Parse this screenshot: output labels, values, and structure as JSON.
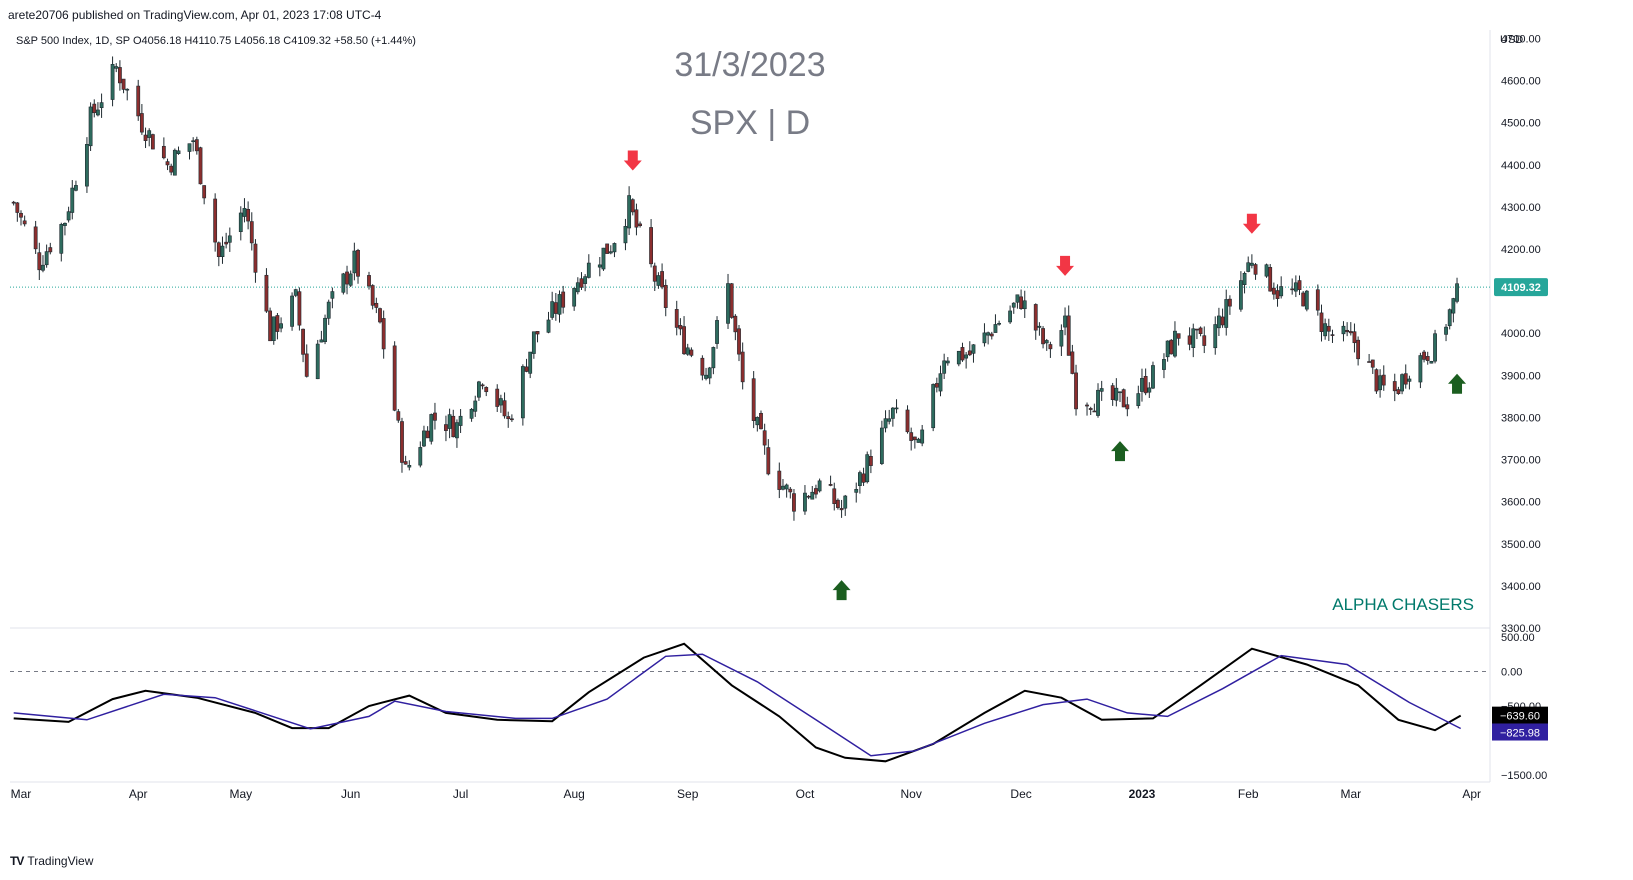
{
  "header": {
    "published": "arete20706 published on TradingView.com, Apr 01, 2023 17:08 UTC-4",
    "symbol_legend": "S&P 500 Index, 1D, SP  O4056.18  H4110.75  L4056.18  C4109.32  +58.50 (+1.44%)"
  },
  "watermark": {
    "date": "31/3/2023",
    "symbol": "SPX | D",
    "brand": "ALPHA CHASERS"
  },
  "footer": {
    "logo": "TV",
    "brand": "TradingView"
  },
  "colors": {
    "up": "#2e6b5e",
    "down": "#8b2e2e",
    "arrow_down": "#f23645",
    "arrow_up": "#1b5e20",
    "osc_fast": "#000000",
    "osc_slow": "#3020a0",
    "brand": "#00796b",
    "price_tag": "#26a69a"
  },
  "chart_data": [
    {
      "type": "candlestick",
      "title": "S&P 500 Index, 1D, SP",
      "currency_label": "USD",
      "ylim": [
        3300,
        4720
      ],
      "y_ticks": [
        "4700.00",
        "4600.00",
        "4500.00",
        "4400.00",
        "4300.00",
        "4200.00",
        "4100.00",
        "4000.00",
        "3900.00",
        "3800.00",
        "3700.00",
        "3600.00",
        "3500.00",
        "3400.00",
        "3300.00"
      ],
      "x_ticks": [
        "Mar",
        "Apr",
        "May",
        "Jun",
        "Jul",
        "Aug",
        "Sep",
        "Oct",
        "Nov",
        "Dec",
        "2023",
        "Feb",
        "Mar",
        "Apr"
      ],
      "last_price": "4109.32",
      "close_path": [
        {
          "date": "2022-03-01",
          "close": 4310
        },
        {
          "date": "2022-03-08",
          "close": 4170
        },
        {
          "date": "2022-03-15",
          "close": 4270
        },
        {
          "date": "2022-03-22",
          "close": 4510
        },
        {
          "date": "2022-03-29",
          "close": 4630
        },
        {
          "date": "2022-04-05",
          "close": 4500
        },
        {
          "date": "2022-04-12",
          "close": 4400
        },
        {
          "date": "2022-04-19",
          "close": 4460
        },
        {
          "date": "2022-04-26",
          "close": 4180
        },
        {
          "date": "2022-05-03",
          "close": 4300
        },
        {
          "date": "2022-05-10",
          "close": 4000
        },
        {
          "date": "2022-05-17",
          "close": 4080
        },
        {
          "date": "2022-05-20",
          "close": 3900
        },
        {
          "date": "2022-05-26",
          "close": 4060
        },
        {
          "date": "2022-06-02",
          "close": 4170
        },
        {
          "date": "2022-06-09",
          "close": 4020
        },
        {
          "date": "2022-06-16",
          "close": 3670
        },
        {
          "date": "2022-06-23",
          "close": 3800
        },
        {
          "date": "2022-06-30",
          "close": 3780
        },
        {
          "date": "2022-07-07",
          "close": 3900
        },
        {
          "date": "2022-07-14",
          "close": 3790
        },
        {
          "date": "2022-07-21",
          "close": 3990
        },
        {
          "date": "2022-07-28",
          "close": 4070
        },
        {
          "date": "2022-08-04",
          "close": 4150
        },
        {
          "date": "2022-08-11",
          "close": 4210
        },
        {
          "date": "2022-08-16",
          "close": 4300
        },
        {
          "date": "2022-08-23",
          "close": 4130
        },
        {
          "date": "2022-08-30",
          "close": 3990
        },
        {
          "date": "2022-09-06",
          "close": 3910
        },
        {
          "date": "2022-09-12",
          "close": 4110
        },
        {
          "date": "2022-09-16",
          "close": 3880
        },
        {
          "date": "2022-09-23",
          "close": 3690
        },
        {
          "date": "2022-09-30",
          "close": 3600
        },
        {
          "date": "2022-10-07",
          "close": 3640
        },
        {
          "date": "2022-10-13",
          "close": 3580
        },
        {
          "date": "2022-10-20",
          "close": 3690
        },
        {
          "date": "2022-10-27",
          "close": 3810
        },
        {
          "date": "2022-11-03",
          "close": 3720
        },
        {
          "date": "2022-11-10",
          "close": 3950
        },
        {
          "date": "2022-11-17",
          "close": 3950
        },
        {
          "date": "2022-11-24",
          "close": 4020
        },
        {
          "date": "2022-12-01",
          "close": 4080
        },
        {
          "date": "2022-12-08",
          "close": 3960
        },
        {
          "date": "2022-12-13",
          "close": 4020
        },
        {
          "date": "2022-12-16",
          "close": 3850
        },
        {
          "date": "2022-12-23",
          "close": 3840
        },
        {
          "date": "2022-12-30",
          "close": 3840
        },
        {
          "date": "2023-01-06",
          "close": 3900
        },
        {
          "date": "2023-01-13",
          "close": 4000
        },
        {
          "date": "2023-01-20",
          "close": 3970
        },
        {
          "date": "2023-01-27",
          "close": 4070
        },
        {
          "date": "2023-02-02",
          "close": 4180
        },
        {
          "date": "2023-02-09",
          "close": 4100
        },
        {
          "date": "2023-02-16",
          "close": 4090
        },
        {
          "date": "2023-02-23",
          "close": 4000
        },
        {
          "date": "2023-03-02",
          "close": 3980
        },
        {
          "date": "2023-03-09",
          "close": 3870
        },
        {
          "date": "2023-03-13",
          "close": 3860
        },
        {
          "date": "2023-03-17",
          "close": 3920
        },
        {
          "date": "2023-03-24",
          "close": 3970
        },
        {
          "date": "2023-03-31",
          "close": 4109.32
        }
      ],
      "annotations": [
        {
          "type": "arrow_down",
          "date": "2022-08-17",
          "price": 4410
        },
        {
          "type": "arrow_up",
          "date": "2022-10-13",
          "price": 3390
        },
        {
          "type": "arrow_down",
          "date": "2022-12-13",
          "price": 4160
        },
        {
          "type": "arrow_up",
          "date": "2022-12-28",
          "price": 3720
        },
        {
          "type": "arrow_down",
          "date": "2023-02-02",
          "price": 4260
        },
        {
          "type": "arrow_up",
          "date": "2023-03-30",
          "price": 3880
        }
      ]
    },
    {
      "type": "line",
      "ylim": [
        -1600,
        600
      ],
      "y_ticks": [
        "500.00",
        "0.00",
        "−500.00",
        "−1500.00"
      ],
      "reference_line": 0,
      "last_values": [
        "−639.60",
        "−825.98"
      ],
      "series": [
        {
          "color": "#000000",
          "points": [
            {
              "date": "2022-03-01",
              "value": -680
            },
            {
              "date": "2022-03-16",
              "value": -730
            },
            {
              "date": "2022-03-28",
              "value": -400
            },
            {
              "date": "2022-04-06",
              "value": -280
            },
            {
              "date": "2022-04-20",
              "value": -380
            },
            {
              "date": "2022-05-06",
              "value": -600
            },
            {
              "date": "2022-05-16",
              "value": -820
            },
            {
              "date": "2022-05-26",
              "value": -820
            },
            {
              "date": "2022-06-06",
              "value": -500
            },
            {
              "date": "2022-06-17",
              "value": -350
            },
            {
              "date": "2022-06-27",
              "value": -600
            },
            {
              "date": "2022-07-11",
              "value": -700
            },
            {
              "date": "2022-07-26",
              "value": -720
            },
            {
              "date": "2022-08-05",
              "value": -300
            },
            {
              "date": "2022-08-20",
              "value": 200
            },
            {
              "date": "2022-08-31",
              "value": 400
            },
            {
              "date": "2022-09-13",
              "value": -200
            },
            {
              "date": "2022-09-26",
              "value": -650
            },
            {
              "date": "2022-10-06",
              "value": -1100
            },
            {
              "date": "2022-10-14",
              "value": -1250
            },
            {
              "date": "2022-10-25",
              "value": -1300
            },
            {
              "date": "2022-11-07",
              "value": -1050
            },
            {
              "date": "2022-11-21",
              "value": -600
            },
            {
              "date": "2022-12-02",
              "value": -280
            },
            {
              "date": "2022-12-12",
              "value": -380
            },
            {
              "date": "2022-12-23",
              "value": -700
            },
            {
              "date": "2023-01-06",
              "value": -680
            },
            {
              "date": "2023-01-19",
              "value": -200
            },
            {
              "date": "2023-02-02",
              "value": 330
            },
            {
              "date": "2023-02-17",
              "value": 100
            },
            {
              "date": "2023-03-03",
              "value": -200
            },
            {
              "date": "2023-03-14",
              "value": -700
            },
            {
              "date": "2023-03-24",
              "value": -850
            },
            {
              "date": "2023-03-31",
              "value": -639.6
            }
          ]
        },
        {
          "color": "#3020a0",
          "points": [
            {
              "date": "2022-03-01",
              "value": -600
            },
            {
              "date": "2022-03-21",
              "value": -700
            },
            {
              "date": "2022-04-11",
              "value": -330
            },
            {
              "date": "2022-04-25",
              "value": -380
            },
            {
              "date": "2022-05-21",
              "value": -830
            },
            {
              "date": "2022-06-06",
              "value": -650
            },
            {
              "date": "2022-06-13",
              "value": -430
            },
            {
              "date": "2022-06-27",
              "value": -580
            },
            {
              "date": "2022-07-16",
              "value": -680
            },
            {
              "date": "2022-07-26",
              "value": -680
            },
            {
              "date": "2022-08-10",
              "value": -400
            },
            {
              "date": "2022-08-26",
              "value": 220
            },
            {
              "date": "2022-09-05",
              "value": 250
            },
            {
              "date": "2022-09-20",
              "value": -150
            },
            {
              "date": "2022-10-06",
              "value": -700
            },
            {
              "date": "2022-10-21",
              "value": -1220
            },
            {
              "date": "2022-11-02",
              "value": -1150
            },
            {
              "date": "2022-11-21",
              "value": -750
            },
            {
              "date": "2022-12-07",
              "value": -480
            },
            {
              "date": "2022-12-19",
              "value": -400
            },
            {
              "date": "2022-12-30",
              "value": -600
            },
            {
              "date": "2023-01-10",
              "value": -650
            },
            {
              "date": "2023-01-25",
              "value": -250
            },
            {
              "date": "2023-02-10",
              "value": 230
            },
            {
              "date": "2023-02-28",
              "value": 100
            },
            {
              "date": "2023-03-17",
              "value": -450
            },
            {
              "date": "2023-03-31",
              "value": -825.98
            }
          ]
        }
      ]
    }
  ]
}
